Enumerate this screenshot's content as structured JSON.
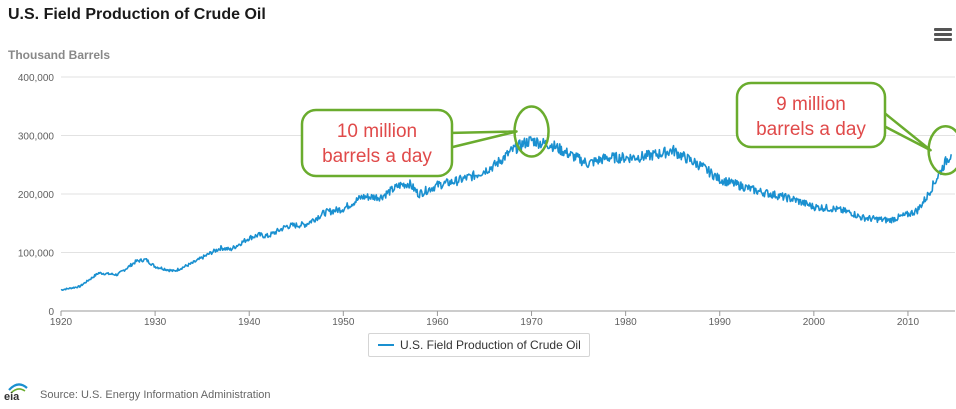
{
  "header": {
    "title": "U.S. Field Production of Crude Oil"
  },
  "footer": {
    "source": "Source: U.S. Energy Information Administration",
    "logo_text": "eia"
  },
  "menu": {
    "icon": "hamburger-menu-icon"
  },
  "colors": {
    "series": "#1a90d0",
    "callout_border": "#6aac2e",
    "callout_text": "#e04a4a",
    "grid": "#e2e2e2",
    "axis": "#606060"
  },
  "chart_data": {
    "type": "line",
    "title": "U.S. Field Production of Crude Oil",
    "ylabel": "Thousand Barrels",
    "xlabel": "",
    "xlim": [
      1920,
      2015
    ],
    "ylim": [
      0,
      400000
    ],
    "x_ticks": [
      1920,
      1930,
      1940,
      1950,
      1960,
      1970,
      1980,
      1990,
      2000,
      2010
    ],
    "y_ticks": [
      0,
      100000,
      200000,
      300000,
      400000
    ],
    "y_tick_labels": [
      "0",
      "100,000",
      "200,000",
      "300,000",
      "400,000"
    ],
    "legend": "U.S. Field Production of Crude Oil",
    "legend_position": "bottom-center",
    "grid": true,
    "series": [
      {
        "name": "U.S. Field Production of Crude Oil",
        "x": [
          1920,
          1922,
          1924,
          1926,
          1928,
          1929,
          1930,
          1932,
          1934,
          1936,
          1937,
          1938,
          1940,
          1941,
          1942,
          1944,
          1946,
          1948,
          1950,
          1952,
          1954,
          1956,
          1957,
          1958,
          1960,
          1962,
          1964,
          1966,
          1968,
          1969,
          1970,
          1971,
          1972,
          1974,
          1976,
          1978,
          1980,
          1982,
          1984,
          1985,
          1986,
          1988,
          1990,
          1992,
          1994,
          1996,
          1998,
          2000,
          2002,
          2004,
          2005,
          2006,
          2008,
          2010,
          2011,
          2012,
          2013,
          2014,
          2014.6
        ],
        "y": [
          36000,
          42000,
          65000,
          62000,
          85000,
          88000,
          76000,
          68000,
          82000,
          100000,
          108000,
          105000,
          125000,
          130000,
          128000,
          145000,
          148000,
          168000,
          175000,
          195000,
          195000,
          215000,
          218000,
          200000,
          215000,
          222000,
          232000,
          248000,
          275000,
          285000,
          292000,
          287000,
          285000,
          268000,
          252000,
          262000,
          262000,
          264000,
          270000,
          275000,
          265000,
          248000,
          225000,
          215000,
          205000,
          198000,
          190000,
          178000,
          175000,
          168000,
          160000,
          158000,
          155000,
          165000,
          172000,
          195000,
          225000,
          255000,
          268000
        ]
      }
    ],
    "annotations": [
      {
        "text_lines": [
          "10 million",
          "barrels a day"
        ],
        "x": 1970,
        "y": 300000
      },
      {
        "text_lines": [
          "9 million",
          "barrels a day"
        ],
        "x": 2014,
        "y": 268000
      }
    ]
  }
}
